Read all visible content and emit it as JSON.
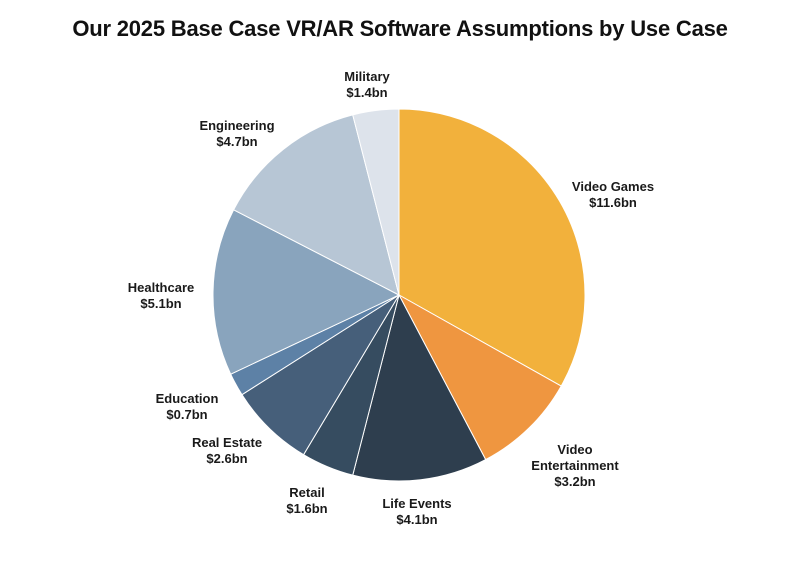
{
  "chart_data": {
    "type": "pie",
    "title": "Our 2025 Base Case VR/AR Software Assumptions by Use Case",
    "start_angle_deg": 0,
    "direction": "clockwise",
    "slices": [
      {
        "label": "Video Games",
        "line1": "Video Games",
        "line2": "",
        "value_label": "$11.6bn",
        "value": 11.6,
        "color": "#f2b13c"
      },
      {
        "label": "Video Entertainment",
        "line1": "Video",
        "line2": "Entertainment",
        "value_label": "$3.2bn",
        "value": 3.2,
        "color": "#ef9640"
      },
      {
        "label": "Life Events",
        "line1": "Life Events",
        "line2": "",
        "value_label": "$4.1bn",
        "value": 4.1,
        "color": "#2e3e4e"
      },
      {
        "label": "Retail",
        "line1": "Retail",
        "line2": "",
        "value_label": "$1.6bn",
        "value": 1.6,
        "color": "#364c60"
      },
      {
        "label": "Real Estate",
        "line1": "Real Estate",
        "line2": "",
        "value_label": "$2.6bn",
        "value": 2.6,
        "color": "#465f7a"
      },
      {
        "label": "Education",
        "line1": "Education",
        "line2": "",
        "value_label": "$0.7bn",
        "value": 0.7,
        "color": "#5d81a6"
      },
      {
        "label": "Healthcare",
        "line1": "Healthcare",
        "line2": "",
        "value_label": "$5.1bn",
        "value": 5.1,
        "color": "#89a4bd"
      },
      {
        "label": "Engineering",
        "line1": "Engineering",
        "line2": "",
        "value_label": "$4.7bn",
        "value": 4.7,
        "color": "#b7c6d5"
      },
      {
        "label": "Military",
        "line1": "Military",
        "line2": "",
        "value_label": "$1.4bn",
        "value": 1.4,
        "color": "#dde3eb"
      }
    ]
  }
}
